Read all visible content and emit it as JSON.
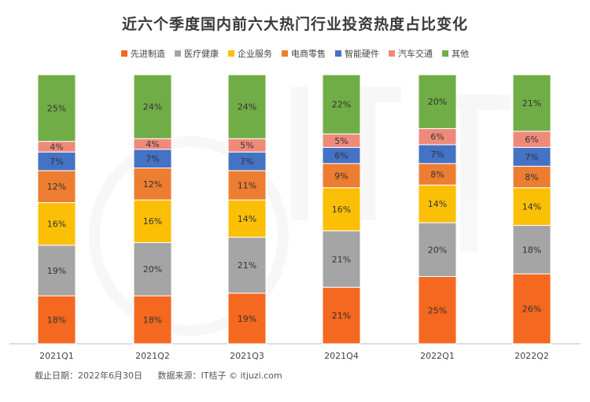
{
  "chart_data": {
    "type": "bar",
    "stacked": true,
    "percent_stacked": true,
    "title": "近六个季度国内前六大热门行业投资热度占比变化",
    "categories": [
      "2021Q1",
      "2021Q2",
      "2021Q3",
      "2021Q4",
      "2022Q1",
      "2022Q2"
    ],
    "series": [
      {
        "name": "先进制造",
        "color": "#f4681f",
        "values": [
          18,
          18,
          19,
          21,
          25,
          26
        ]
      },
      {
        "name": "医疗健康",
        "color": "#a5a5a5",
        "values": [
          19,
          20,
          21,
          21,
          20,
          18
        ]
      },
      {
        "name": "企业服务",
        "color": "#fbbf06",
        "values": [
          16,
          16,
          14,
          16,
          14,
          14
        ]
      },
      {
        "name": "电商零售",
        "color": "#ed7d31",
        "values": [
          12,
          12,
          11,
          9,
          8,
          8
        ]
      },
      {
        "name": "智能硬件",
        "color": "#4472c4",
        "values": [
          7,
          7,
          7,
          6,
          7,
          7
        ]
      },
      {
        "name": "汽车交通",
        "color": "#ef8a7a",
        "values": [
          4,
          4,
          5,
          5,
          6,
          6
        ]
      },
      {
        "name": "其他",
        "color": "#70ad47",
        "values": [
          25,
          24,
          24,
          22,
          20,
          21
        ]
      }
    ],
    "data_label_suffix": "%",
    "legend_position": "top",
    "grid": false
  },
  "footer": {
    "date": "截止日期：2022年6月30日",
    "source": "数据来源：IT桔子 © itjuzi.com"
  }
}
